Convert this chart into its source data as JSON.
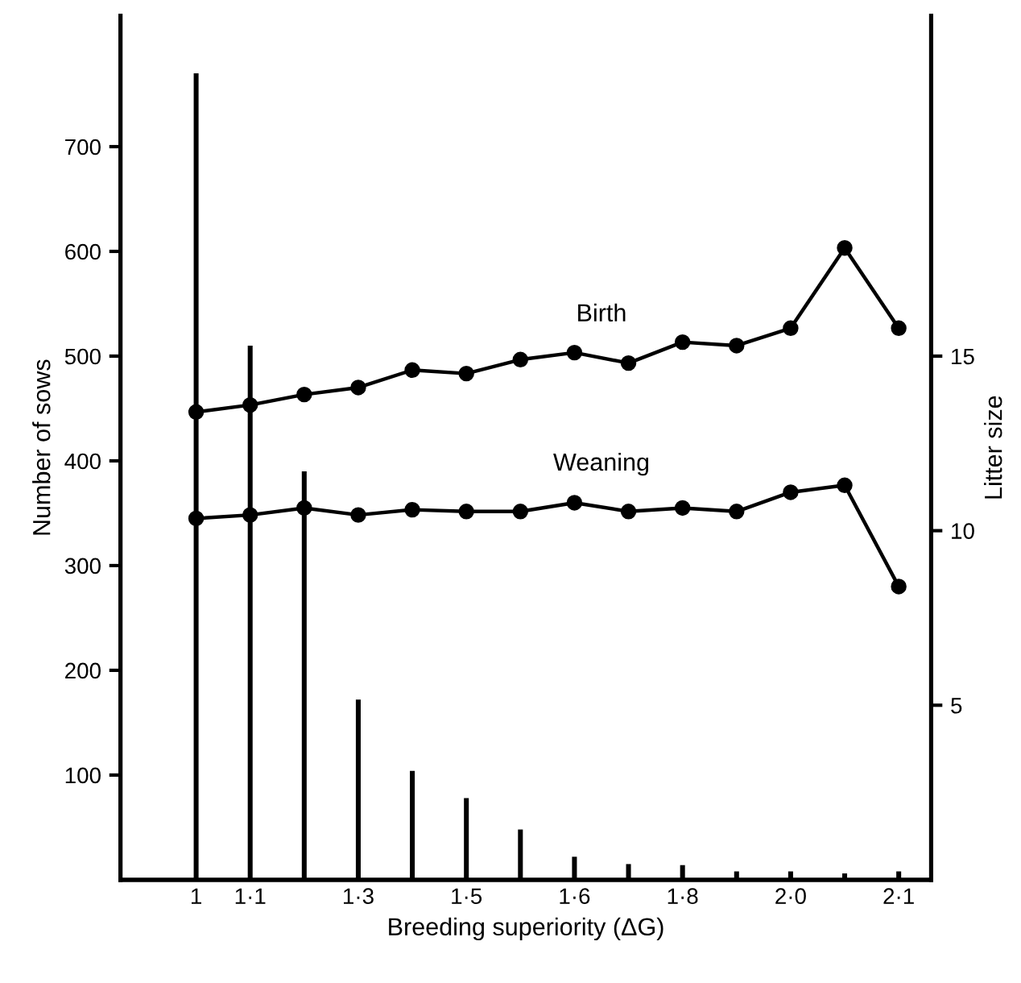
{
  "chart_data": {
    "type": "bar",
    "xlabel": "Breeding superiority (ΔG)",
    "ylabel": "Number of sows",
    "y2label": "Litter size",
    "categories": [
      "1",
      "1·1",
      null,
      "1·3",
      null,
      "1·5",
      null,
      "1·6",
      null,
      "1·8",
      null,
      "2·0",
      null,
      "2·1"
    ],
    "series": [
      {
        "color": "#000000",
        "values": [
          770,
          510,
          390,
          172,
          104,
          78,
          48,
          22,
          15,
          14,
          8,
          8,
          6,
          8
        ]
      },
      {
        "type": "line",
        "name": "Birth",
        "axis": "y2",
        "color": "#000000",
        "values": [
          13.4,
          13.6,
          13.9,
          14.1,
          14.6,
          14.5,
          14.9,
          15.1,
          14.8,
          15.4,
          15.3,
          15.8,
          18.1,
          15.8
        ]
      },
      {
        "type": "line",
        "name": "Weaning",
        "axis": "y2",
        "color": "#000000",
        "values": [
          10.35,
          10.45,
          10.65,
          10.45,
          10.6,
          10.55,
          10.55,
          10.8,
          10.55,
          10.65,
          10.55,
          11.1,
          11.3,
          8.4
        ]
      }
    ],
    "ylim": [
      0,
      825
    ],
    "yticks": [
      100,
      200,
      300,
      400,
      500,
      600,
      700
    ],
    "y2lim": [
      0,
      24.75
    ],
    "y2ticks": [
      5,
      10,
      15
    ],
    "marker": "circle",
    "line_style": "solid",
    "grid": false,
    "legend": false
  }
}
